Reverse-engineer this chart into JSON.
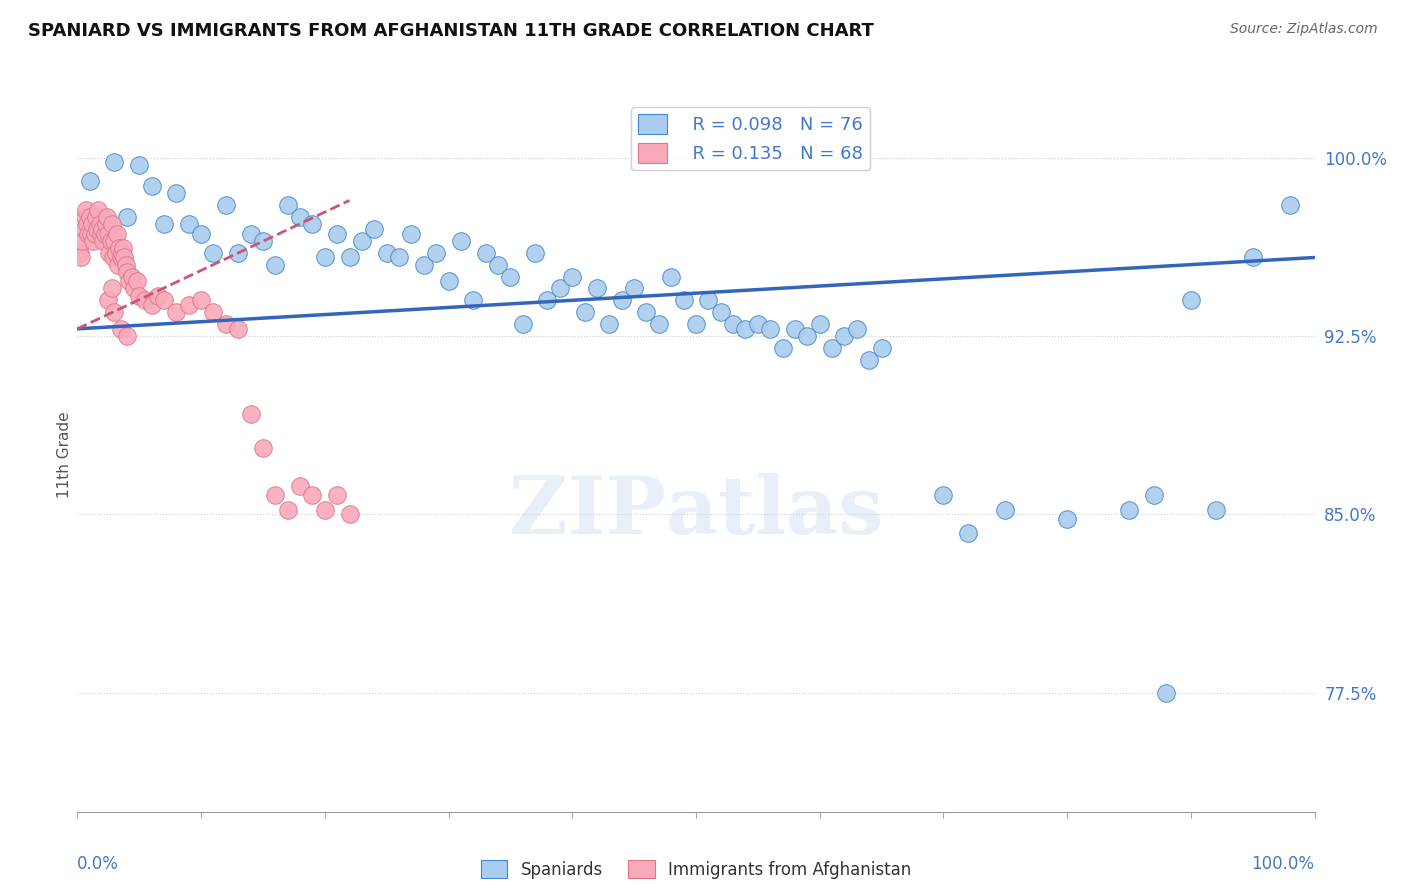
{
  "title": "SPANIARD VS IMMIGRANTS FROM AFGHANISTAN 11TH GRADE CORRELATION CHART",
  "source": "Source: ZipAtlas.com",
  "ylabel": "11th Grade",
  "ylabel_right_labels": [
    "100.0%",
    "92.5%",
    "85.0%",
    "77.5%"
  ],
  "ylabel_right_values": [
    1.0,
    0.925,
    0.85,
    0.775
  ],
  "xmin": 0.0,
  "xmax": 1.0,
  "ymin": 0.725,
  "ymax": 1.025,
  "legend_r_blue": "R = 0.098",
  "legend_n_blue": "N = 76",
  "legend_r_pink": "R = 0.135",
  "legend_n_pink": "N = 68",
  "blue_fill": "#aaccee",
  "blue_edge": "#4488cc",
  "pink_fill": "#f8aabb",
  "pink_edge": "#dd7788",
  "line_blue_color": "#3366bb",
  "line_pink_color": "#cc5577",
  "blue_line_x0": 0.0,
  "blue_line_x1": 1.0,
  "blue_line_y0": 0.928,
  "blue_line_y1": 0.958,
  "pink_line_x0": 0.0,
  "pink_line_x1": 0.22,
  "pink_line_y0": 0.928,
  "pink_line_y1": 0.982,
  "blue_x": [
    0.01,
    0.02,
    0.03,
    0.04,
    0.05,
    0.06,
    0.07,
    0.08,
    0.09,
    0.1,
    0.11,
    0.12,
    0.13,
    0.14,
    0.15,
    0.16,
    0.17,
    0.18,
    0.19,
    0.2,
    0.21,
    0.22,
    0.23,
    0.24,
    0.25,
    0.26,
    0.27,
    0.28,
    0.29,
    0.3,
    0.31,
    0.32,
    0.33,
    0.34,
    0.35,
    0.36,
    0.37,
    0.38,
    0.39,
    0.4,
    0.41,
    0.42,
    0.43,
    0.44,
    0.45,
    0.46,
    0.47,
    0.48,
    0.49,
    0.5,
    0.51,
    0.52,
    0.53,
    0.54,
    0.55,
    0.56,
    0.57,
    0.58,
    0.59,
    0.6,
    0.61,
    0.62,
    0.63,
    0.64,
    0.65,
    0.7,
    0.72,
    0.75,
    0.8,
    0.85,
    0.87,
    0.88,
    0.9,
    0.92,
    0.95,
    0.98
  ],
  "blue_y": [
    0.99,
    0.975,
    0.998,
    0.975,
    0.997,
    0.988,
    0.972,
    0.985,
    0.972,
    0.968,
    0.96,
    0.98,
    0.96,
    0.968,
    0.965,
    0.955,
    0.98,
    0.975,
    0.972,
    0.958,
    0.968,
    0.958,
    0.965,
    0.97,
    0.96,
    0.958,
    0.968,
    0.955,
    0.96,
    0.948,
    0.965,
    0.94,
    0.96,
    0.955,
    0.95,
    0.93,
    0.96,
    0.94,
    0.945,
    0.95,
    0.935,
    0.945,
    0.93,
    0.94,
    0.945,
    0.935,
    0.93,
    0.95,
    0.94,
    0.93,
    0.94,
    0.935,
    0.93,
    0.928,
    0.93,
    0.928,
    0.92,
    0.928,
    0.925,
    0.93,
    0.92,
    0.925,
    0.928,
    0.915,
    0.92,
    0.858,
    0.842,
    0.852,
    0.848,
    0.852,
    0.858,
    0.775,
    0.94,
    0.852,
    0.958,
    0.98
  ],
  "pink_x": [
    0.002,
    0.003,
    0.004,
    0.005,
    0.006,
    0.007,
    0.008,
    0.009,
    0.01,
    0.011,
    0.012,
    0.013,
    0.014,
    0.015,
    0.016,
    0.017,
    0.018,
    0.019,
    0.02,
    0.021,
    0.022,
    0.023,
    0.024,
    0.025,
    0.026,
    0.027,
    0.028,
    0.029,
    0.03,
    0.031,
    0.032,
    0.033,
    0.034,
    0.035,
    0.036,
    0.037,
    0.038,
    0.039,
    0.04,
    0.042,
    0.044,
    0.046,
    0.048,
    0.05,
    0.055,
    0.06,
    0.065,
    0.07,
    0.08,
    0.09,
    0.1,
    0.11,
    0.12,
    0.13,
    0.14,
    0.15,
    0.16,
    0.17,
    0.18,
    0.19,
    0.2,
    0.21,
    0.22,
    0.025,
    0.028,
    0.03,
    0.035,
    0.04
  ],
  "pink_y": [
    0.96,
    0.958,
    0.965,
    0.97,
    0.975,
    0.978,
    0.972,
    0.968,
    0.975,
    0.968,
    0.972,
    0.965,
    0.968,
    0.975,
    0.97,
    0.978,
    0.972,
    0.968,
    0.97,
    0.965,
    0.968,
    0.972,
    0.975,
    0.968,
    0.96,
    0.965,
    0.972,
    0.958,
    0.965,
    0.96,
    0.968,
    0.955,
    0.962,
    0.958,
    0.96,
    0.962,
    0.958,
    0.955,
    0.952,
    0.948,
    0.95,
    0.945,
    0.948,
    0.942,
    0.94,
    0.938,
    0.942,
    0.94,
    0.935,
    0.938,
    0.94,
    0.935,
    0.93,
    0.928,
    0.892,
    0.878,
    0.858,
    0.852,
    0.862,
    0.858,
    0.852,
    0.858,
    0.85,
    0.94,
    0.945,
    0.935,
    0.928,
    0.925
  ]
}
